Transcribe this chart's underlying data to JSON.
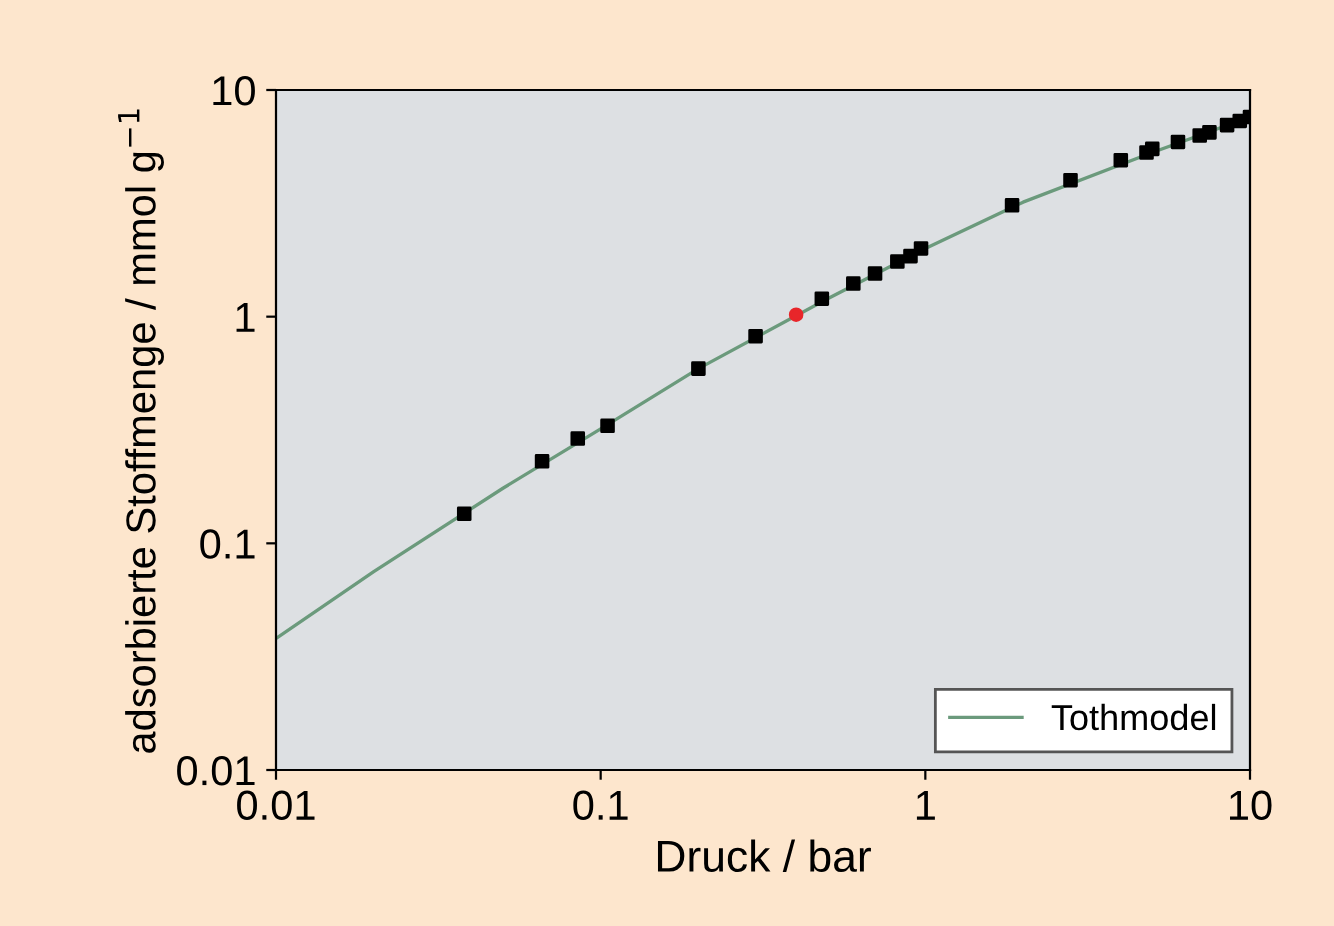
{
  "chart_data": {
    "type": "scatter",
    "xlabel": "Druck / bar",
    "ylabel": "adsorbierte Stoffmenge / mmol g$^{−1}$",
    "log": "xy",
    "xlim": [
      0.01,
      10
    ],
    "xticks": [
      0.01,
      0.1,
      1,
      10
    ],
    "ylim": [
      0.01,
      10
    ],
    "yticks": [
      0.01,
      0.1,
      1,
      10
    ],
    "grid": false,
    "legend": "bottom right",
    "series": [
      {
        "type": "line",
        "name": "Tothmodel",
        "color": "#6b9a7c",
        "marker": "none",
        "line_style": "solid",
        "x": [
          0.01,
          0.02,
          0.05,
          0.1,
          0.2,
          0.5,
          1,
          2,
          5,
          10
        ],
        "values": [
          0.038,
          0.075,
          0.175,
          0.32,
          0.59,
          1.2,
          2.0,
          3.2,
          5.3,
          7.6
        ]
      },
      {
        "color": "#000000",
        "marker": "square",
        "x": [
          0.038,
          0.066,
          0.085,
          0.105,
          0.2,
          0.3,
          0.48,
          0.6,
          0.7,
          0.82,
          0.9,
          0.97,
          1.85,
          2.8,
          4.0,
          4.8,
          5.0,
          6.0,
          7.0,
          7.5,
          8.5,
          9.3,
          10
        ],
        "values": [
          0.135,
          0.23,
          0.29,
          0.33,
          0.59,
          0.82,
          1.2,
          1.4,
          1.55,
          1.75,
          1.85,
          2.0,
          3.1,
          4.0,
          4.9,
          5.3,
          5.5,
          5.9,
          6.3,
          6.5,
          7.0,
          7.3,
          7.6
        ]
      },
      {
        "color": "#e8262a",
        "marker": "circle",
        "x": [
          0.4
        ],
        "values": [
          1.02
        ]
      }
    ]
  }
}
